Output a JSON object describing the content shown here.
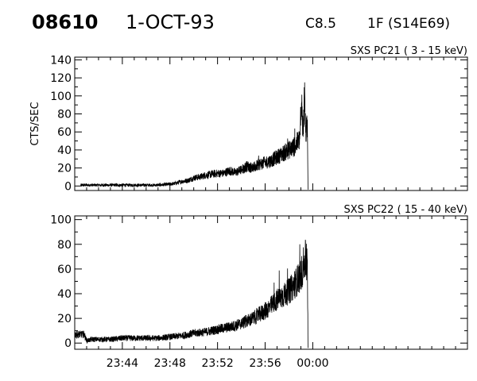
{
  "header": {
    "event_id": "08610",
    "date": "1-OCT-93",
    "flare_class": "C8.5",
    "flare_location": "1F (S14E69)"
  },
  "chart_data": [
    {
      "type": "line",
      "title": "SXS PC21  (  3 - 15 keV)",
      "ylabel": "CTS/SEC",
      "xlabel": "",
      "x_unit": "minutes since 23:40 UT",
      "xlim": [
        0,
        33
      ],
      "ylim": [
        -5,
        143
      ],
      "yticks": [
        0,
        20,
        40,
        60,
        80,
        100,
        120,
        140
      ],
      "xticks": [
        4,
        8,
        12,
        16,
        20
      ],
      "xtick_labels": [
        "",
        "",
        "",
        "",
        ""
      ],
      "grid": false,
      "series": [
        {
          "x": [
            0.5,
            2,
            3,
            4,
            5,
            6,
            7,
            8,
            8.5,
            9,
            9.5,
            10,
            10.5,
            11,
            11.5,
            12,
            12.5,
            13,
            13.5,
            14,
            14.5,
            15,
            15.5,
            16,
            16.5,
            17,
            17.5,
            18,
            18.5,
            18.9,
            19.1,
            19.2,
            19.3,
            19.4,
            19.5,
            19.55,
            19.6,
            19.7,
            19.8,
            20,
            22,
            26,
            33
          ],
          "y": [
            1,
            1,
            1,
            1,
            1,
            1,
            1,
            2,
            3,
            5,
            6,
            9,
            10,
            12,
            13,
            14,
            14,
            17,
            15,
            18,
            22,
            20,
            24,
            26,
            28,
            32,
            36,
            40,
            44,
            52,
            90,
            55,
            105,
            60,
            63,
            66,
            0,
            0,
            0,
            0,
            0,
            0,
            0
          ]
        }
      ]
    },
    {
      "type": "line",
      "title": "SXS PC22  ( 15 - 40 keV)",
      "ylabel": "",
      "xlabel": "",
      "x_unit": "minutes since 23:40 UT",
      "xlim": [
        0,
        33
      ],
      "ylim": [
        -5,
        103
      ],
      "yticks": [
        0,
        20,
        40,
        60,
        80,
        100
      ],
      "xticks": [
        4,
        8,
        12,
        16,
        20
      ],
      "xtick_labels": [
        "23:44",
        "23:48",
        "23:52",
        "23:56",
        "00:00"
      ],
      "grid": false,
      "series": [
        {
          "x": [
            0,
            0.8,
            1,
            1.5,
            2,
            3,
            4,
            5,
            6,
            7,
            8,
            9,
            10,
            11,
            12,
            13,
            13.5,
            14,
            14.5,
            15,
            15.5,
            16,
            16.5,
            17,
            17.5,
            18,
            18.5,
            19,
            19.2,
            19.4,
            19.5,
            19.55,
            19.6,
            19.7,
            19.8,
            20,
            24,
            28,
            33
          ],
          "y": [
            7,
            7,
            2,
            3,
            3,
            3,
            4,
            4,
            4,
            4,
            5,
            6,
            8,
            9,
            11,
            13,
            14,
            16,
            18,
            20,
            23,
            26,
            30,
            35,
            38,
            42,
            48,
            55,
            62,
            68,
            64,
            60,
            0,
            0,
            0,
            0,
            0,
            0,
            0
          ]
        }
      ]
    }
  ]
}
